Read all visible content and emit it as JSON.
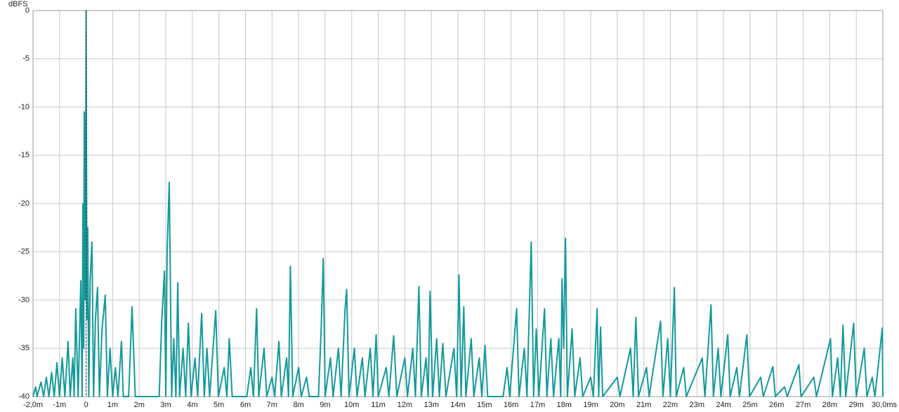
{
  "chart_data": {
    "type": "line",
    "y_label": "dBFS",
    "xlim": [
      -2,
      30
    ],
    "ylim": [
      -40,
      0
    ],
    "xticks": [
      {
        "value": -2,
        "label": "-2,0m"
      },
      {
        "value": -1,
        "label": "-1m"
      },
      0,
      {
        "value": 1,
        "label": "1m"
      },
      {
        "value": 2,
        "label": "2m"
      },
      {
        "value": 3,
        "label": "3m"
      },
      {
        "value": 4,
        "label": "4m"
      },
      {
        "value": 5,
        "label": "5m"
      },
      {
        "value": 6,
        "label": "6m"
      },
      {
        "value": 7,
        "label": "7m"
      },
      {
        "value": 8,
        "label": "8m"
      },
      {
        "value": 9,
        "label": "9m"
      },
      {
        "value": 10,
        "label": "10m"
      },
      {
        "value": 11,
        "label": "11m"
      },
      {
        "value": 12,
        "label": "12m"
      },
      {
        "value": 13,
        "label": "13m"
      },
      {
        "value": 14,
        "label": "14m"
      },
      {
        "value": 15,
        "label": "15m"
      },
      {
        "value": 16,
        "label": "16m"
      },
      {
        "value": 17,
        "label": "17m"
      },
      {
        "value": 18,
        "label": "18m"
      },
      {
        "value": 19,
        "label": "19m"
      },
      {
        "value": 20,
        "label": "20m"
      },
      {
        "value": 21,
        "label": "21m"
      },
      {
        "value": 22,
        "label": "22m"
      },
      {
        "value": 23,
        "label": "23m"
      },
      {
        "value": 24,
        "label": "24m"
      },
      {
        "value": 25,
        "label": "25m"
      },
      {
        "value": 26,
        "label": "26m"
      },
      {
        "value": 27,
        "label": "27m"
      },
      {
        "value": 28,
        "label": "28m"
      },
      {
        "value": 29,
        "label": "29m"
      },
      {
        "value": 30,
        "label": "30,0ms"
      }
    ],
    "yticks": [
      0,
      -5,
      -10,
      -15,
      -20,
      -25,
      -30,
      -35,
      -40
    ],
    "grid": true,
    "x": [
      -2,
      -1.9,
      -1.85,
      -1.7,
      -1.6,
      -1.5,
      -1.4,
      -1.3,
      -1.2,
      -1.1,
      -1.0,
      -0.9,
      -0.8,
      -0.68,
      -0.6,
      -0.5,
      -0.45,
      -0.39,
      -0.3,
      -0.2,
      -0.15,
      -0.12,
      -0.09,
      -0.07,
      -0.03,
      0,
      0.03,
      0.06,
      0.1,
      0.15,
      0.22,
      0.28,
      0.35,
      0.43,
      0.5,
      0.6,
      0.72,
      0.8,
      0.9,
      1.0,
      1.1,
      1.2,
      1.33,
      1.4,
      1.6,
      1.73,
      1.85,
      2.75,
      2.85,
      2.95,
      3.0,
      3.05,
      3.13,
      3.22,
      3.3,
      3.38,
      3.45,
      3.52,
      3.65,
      3.75,
      3.85,
      3.95,
      4.1,
      4.2,
      4.35,
      4.45,
      4.55,
      4.65,
      4.88,
      4.98,
      5.2,
      5.3,
      5.39,
      5.5,
      6.05,
      6.2,
      6.3,
      6.42,
      6.5,
      6.7,
      6.8,
      7.0,
      7.1,
      7.26,
      7.35,
      7.55,
      7.62,
      7.69,
      7.78,
      8.0,
      8.1,
      8.3,
      8.4,
      8.75,
      8.85,
      8.93,
      9.0,
      9.2,
      9.3,
      9.5,
      9.6,
      9.75,
      9.81,
      9.9,
      10.1,
      10.2,
      10.4,
      10.5,
      10.7,
      10.8,
      10.92,
      11.0,
      11.3,
      11.4,
      11.58,
      11.7,
      12.0,
      12.1,
      12.3,
      12.4,
      12.53,
      12.62,
      12.8,
      12.88,
      12.95,
      13.05,
      13.2,
      13.3,
      13.43,
      13.55,
      13.85,
      13.95,
      14.04,
      14.12,
      14.22,
      14.3,
      14.5,
      14.6,
      14.8,
      14.9,
      15.02,
      15.12,
      15.7,
      15.85,
      15.95,
      16.21,
      16.3,
      16.5,
      16.6,
      16.76,
      16.85,
      16.95,
      17.05,
      17.26,
      17.35,
      17.5,
      17.6,
      17.8,
      17.87,
      17.92,
      17.98,
      18.05,
      18.12,
      18.3,
      18.4,
      18.6,
      18.7,
      19.0,
      19.1,
      19.24,
      19.3,
      19.37,
      19.45,
      20.0,
      20.1,
      20.5,
      20.6,
      20.7,
      20.8,
      21.1,
      21.2,
      21.63,
      21.72,
      21.9,
      22.0,
      22.15,
      22.22,
      22.5,
      22.6,
      23.2,
      23.3,
      23.53,
      23.62,
      23.8,
      23.9,
      24.16,
      24.25,
      24.5,
      24.6,
      24.88,
      24.98,
      25.4,
      25.5,
      25.86,
      25.95,
      26.3,
      26.4,
      26.84,
      26.92,
      27.4,
      27.5,
      28.03,
      28.1,
      28.3,
      28.4,
      28.5,
      28.6,
      28.9,
      29.0,
      29.3,
      29.4,
      29.6,
      29.7,
      29.98,
      30
    ],
    "series": [
      {
        "color": "#14999b",
        "values": [
          -40,
          -39,
          -40,
          -38.5,
          -40,
          -38,
          -40,
          -37.5,
          -40,
          -36.5,
          -40,
          -36,
          -40,
          -34.3,
          -40,
          -36,
          -40,
          -30.9,
          -40,
          -28,
          -40,
          -20,
          -35,
          -10.5,
          -30,
          0,
          -32,
          -22.5,
          -40,
          -28,
          -24,
          -40,
          -32,
          -28.7,
          -40,
          -33,
          -29.5,
          -40,
          -35,
          -40,
          -37,
          -40,
          -34.3,
          -40,
          -40,
          -30.7,
          -40,
          -40,
          -32,
          -27,
          -40,
          -25,
          -17.8,
          -40,
          -34,
          -40,
          -28.2,
          -40,
          -35,
          -40,
          -32.4,
          -40,
          -36,
          -40,
          -31.4,
          -40,
          -35,
          -40,
          -31.1,
          -40,
          -37,
          -40,
          -34,
          -40,
          -40,
          -37,
          -40,
          -30.9,
          -40,
          -35,
          -40,
          -38,
          -40,
          -34.3,
          -40,
          -36,
          -40,
          -26.5,
          -40,
          -37,
          -40,
          -38,
          -40,
          -40,
          -33,
          -25.7,
          -40,
          -36,
          -40,
          -35,
          -40,
          -31,
          -28.9,
          -40,
          -35,
          -40,
          -36,
          -40,
          -35,
          -40,
          -33.6,
          -40,
          -37,
          -40,
          -33.7,
          -40,
          -36,
          -40,
          -35,
          -40,
          -28.6,
          -40,
          -36,
          -40,
          -29.1,
          -40,
          -34,
          -40,
          -34.5,
          -40,
          -35,
          -40,
          -27.4,
          -40,
          -30.7,
          -40,
          -34,
          -40,
          -36,
          -40,
          -34.7,
          -40,
          -40,
          -37,
          -40,
          -30.9,
          -40,
          -35,
          -40,
          -24,
          -40,
          -33,
          -40,
          -30.9,
          -40,
          -34,
          -40,
          -34,
          -40,
          -27.8,
          -35,
          -23.6,
          -40,
          -33,
          -40,
          -36,
          -40,
          -38,
          -40,
          -30.9,
          -40,
          -32.8,
          -40,
          -38,
          -40,
          -35,
          -40,
          -31.8,
          -40,
          -37,
          -40,
          -32.2,
          -40,
          -34,
          -40,
          -28.7,
          -40,
          -37,
          -40,
          -36,
          -40,
          -30.5,
          -40,
          -35,
          -40,
          -33.6,
          -40,
          -37,
          -40,
          -33.6,
          -40,
          -38,
          -40,
          -36.9,
          -40,
          -39,
          -40,
          -36.7,
          -40,
          -38,
          -40,
          -34,
          -40,
          -36,
          -40,
          -32.6,
          -40,
          -32.4,
          -40,
          -35,
          -40,
          -38,
          -40,
          -32.9,
          -40
        ]
      }
    ]
  }
}
